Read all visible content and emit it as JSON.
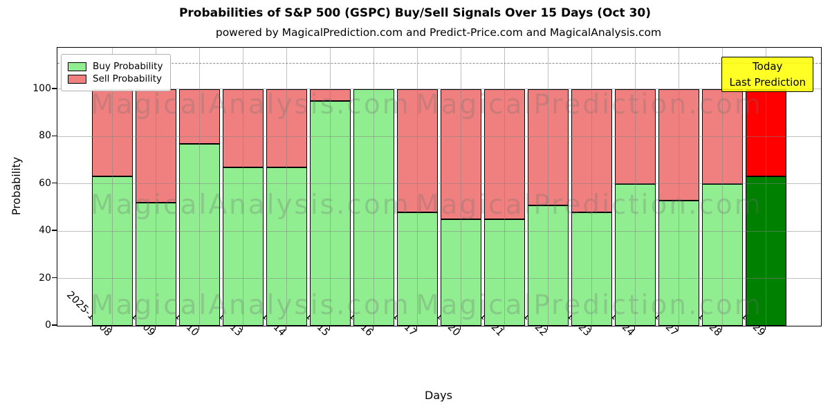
{
  "title": "Probabilities of S&P 500 (GSPC) Buy/Sell Signals Over 15 Days (Oct 30)",
  "subtitle": "powered by MagicalPrediction.com and Predict-Price.com and MagicalAnalysis.com",
  "legend": {
    "buy_label": "Buy Probability",
    "sell_label": "Sell Probability"
  },
  "annotation": {
    "line1": "Today",
    "line2": "Last Prediction"
  },
  "watermarks": {
    "left": "MagicalAnalysis.com",
    "right": "MagicalPrediction.com"
  },
  "axes": {
    "xlabel": "Days",
    "ylabel": "Probability"
  },
  "colors": {
    "buy": "#90EE90",
    "sell": "#F08080",
    "today_buy": "#008000",
    "today_sell": "#FF0000",
    "annotation_bg": "#FFFF00",
    "grid": "#808080",
    "edge": "#000000"
  },
  "chart_data": {
    "type": "bar",
    "stacked": true,
    "title": "Probabilities of S&P 500 (GSPC) Buy/Sell Signals Over 15 Days (Oct 30)",
    "xlabel": "Days",
    "ylabel": "Probability",
    "ylim": [
      0,
      117.5
    ],
    "yticks": [
      0,
      20,
      40,
      60,
      80,
      100
    ],
    "grid": true,
    "legend_position": "upper left",
    "dashed_line_y": 111,
    "categories": [
      "2025-10-08",
      "2025-10-09",
      "2025-10-10",
      "2025-10-13",
      "2025-10-14",
      "2025-10-15",
      "2025-10-16",
      "2025-10-17",
      "2025-10-20",
      "2025-10-21",
      "2025-10-22",
      "2025-10-23",
      "2025-10-24",
      "2025-10-27",
      "2025-10-28",
      "2025-10-29"
    ],
    "series": [
      {
        "name": "Buy Probability",
        "color": "#90EE90",
        "values": [
          63,
          52,
          77,
          67,
          67,
          95,
          100,
          48,
          45,
          45,
          51,
          48,
          60,
          53,
          60,
          63
        ]
      },
      {
        "name": "Sell Probability",
        "color": "#F08080",
        "values": [
          37,
          48,
          23,
          33,
          33,
          5,
          0,
          52,
          55,
          55,
          49,
          52,
          40,
          47,
          40,
          37
        ]
      }
    ],
    "last_bar_highlight": {
      "label": "Today / Last Prediction",
      "buy_color": "#008000",
      "sell_color": "#FF0000"
    }
  }
}
